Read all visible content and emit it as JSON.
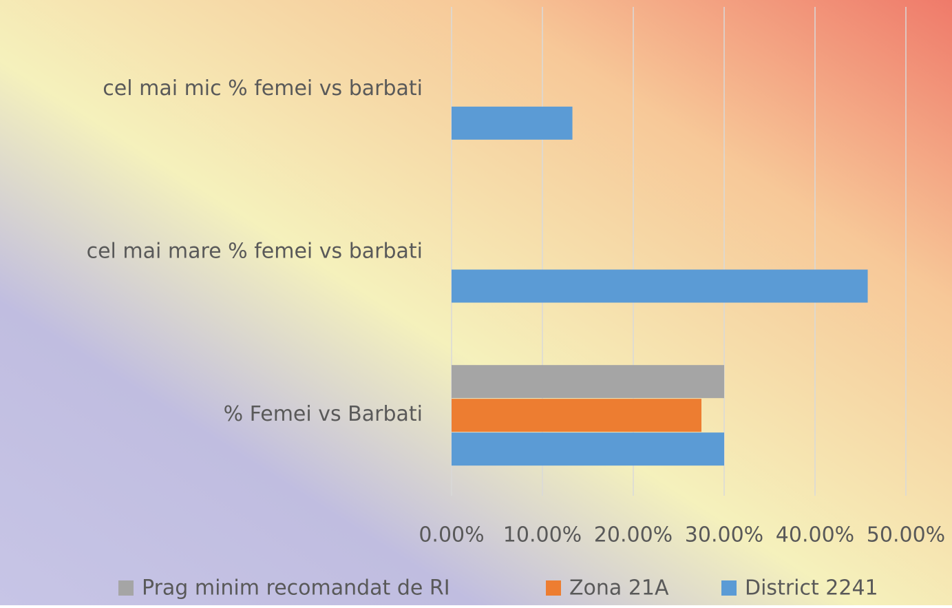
{
  "chart_data": {
    "type": "hbar",
    "categories": [
      "cel mai mic % femei vs barbati",
      "cel mai mare % femei vs barbati",
      "% Femei vs Barbati"
    ],
    "series": [
      {
        "name": "Prag minim  recomandat de RI",
        "color": "#a5a5a5",
        "values": [
          null,
          null,
          30
        ]
      },
      {
        "name": "Zona 21A",
        "color": "#ed7d31",
        "values": [
          null,
          null,
          27.5
        ]
      },
      {
        "name": "District 2241",
        "color": "#5b9bd5",
        "values": [
          13.3,
          45.8,
          30
        ]
      }
    ],
    "xlim": [
      0,
      50
    ],
    "xticks": [
      {
        "value": 0,
        "label": "0.00%"
      },
      {
        "value": 10,
        "label": "10.00%"
      },
      {
        "value": 20,
        "label": "20.00%"
      },
      {
        "value": 30,
        "label": "30.00%"
      },
      {
        "value": 40,
        "label": "40.00%"
      },
      {
        "value": 50,
        "label": "50.00%"
      }
    ],
    "grid": true,
    "legend": "bottom"
  }
}
